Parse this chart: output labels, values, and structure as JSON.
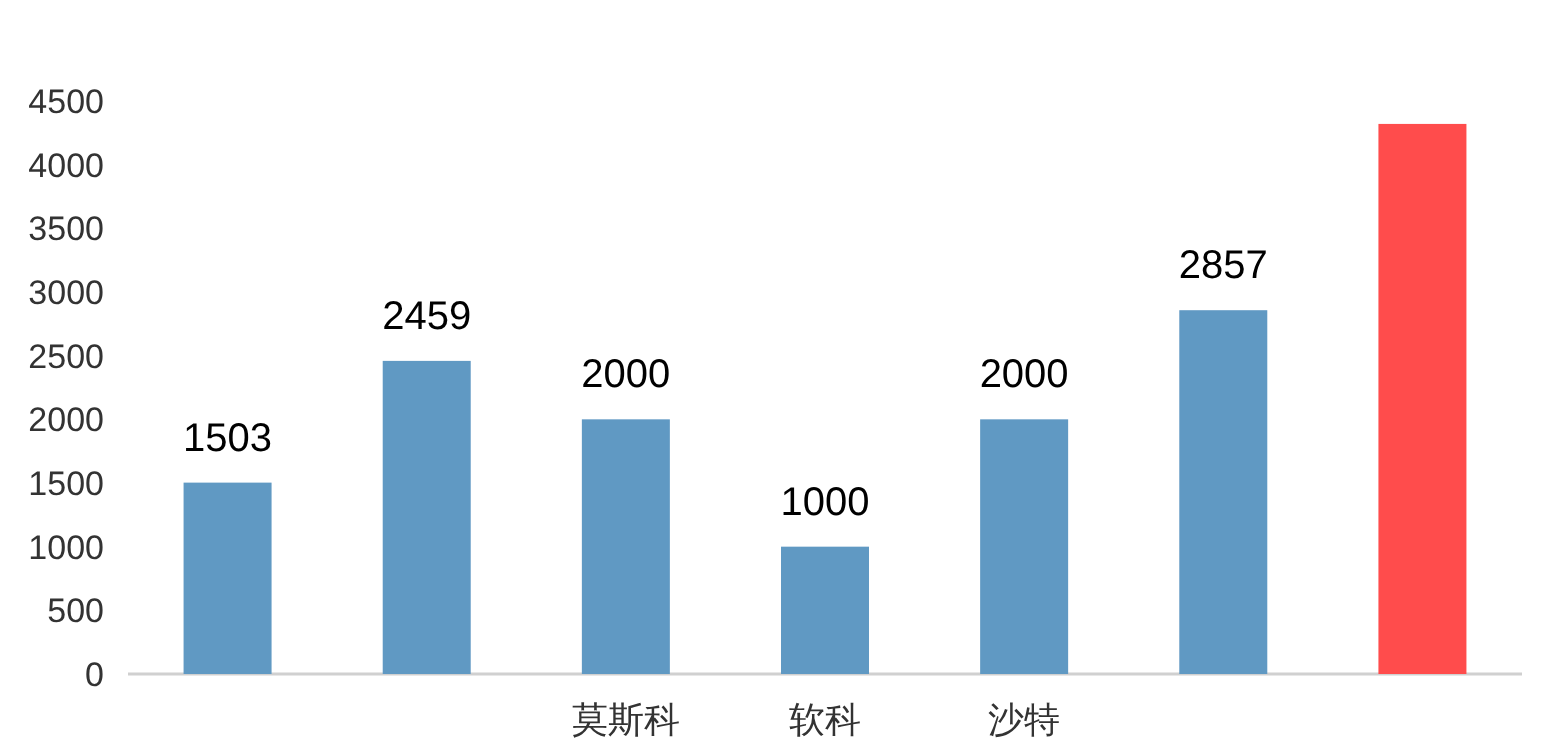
{
  "chart_data": {
    "type": "bar",
    "categories": [
      null,
      null,
      "莫斯科",
      "软科",
      "沙特",
      null,
      null
    ],
    "values": [
      1503,
      2459,
      2000,
      1000,
      2000,
      2857,
      4320
    ],
    "colors": [
      "#6099c3",
      "#6099c3",
      "#6099c3",
      "#6099c3",
      "#6099c3",
      "#6099c3",
      "#ff4c4c"
    ],
    "value_labels": [
      "1503",
      "2459",
      "2000",
      "1000",
      "2000",
      "2857",
      null
    ],
    "ylim": [
      0,
      4500
    ],
    "yticks": [
      0,
      500,
      1000,
      1500,
      2000,
      2500,
      3000,
      3500,
      4000,
      4500
    ]
  }
}
